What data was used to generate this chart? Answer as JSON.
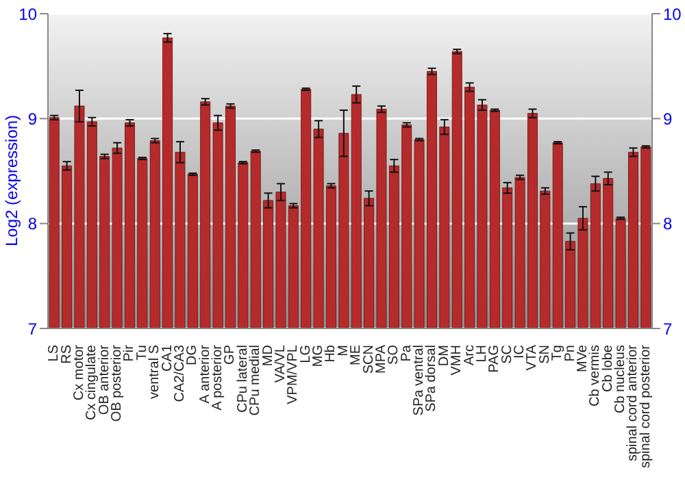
{
  "chart_data": {
    "type": "bar",
    "ylabel": "Log2 (expression)",
    "categories": [
      "LS",
      "RS",
      "Cx motor",
      "Cx cingulate",
      "OB anterior",
      "OB posterior",
      "Pir",
      "Tu",
      "ventral S",
      "CA1",
      "CA2/CA3",
      "DG",
      "A anterior",
      "A posterior",
      "GP",
      "CPu lateral",
      "CPu medial",
      "MD",
      "VA/VL",
      "VPM/VPL",
      "LG",
      "MG",
      "Hb",
      "M",
      "ME",
      "SCN",
      "MPA",
      "SO",
      "Pa",
      "SPa ventral",
      "SPa dorsal",
      "DM",
      "VMH",
      "Arc",
      "LH",
      "PAG",
      "SC",
      "IC",
      "VTA",
      "SN",
      "Tg",
      "Pn",
      "MVe",
      "Cb vermis",
      "Cb lobe",
      "Cb nucleus",
      "spinal cord anterior",
      "spinal cord posterior"
    ],
    "values": [
      9.01,
      8.55,
      9.12,
      8.97,
      8.64,
      8.72,
      8.96,
      8.62,
      8.79,
      9.77,
      8.68,
      8.47,
      9.16,
      8.96,
      9.12,
      8.58,
      8.69,
      8.22,
      8.3,
      8.17,
      9.28,
      8.9,
      8.36,
      8.86,
      9.23,
      8.24,
      9.09,
      8.55,
      8.94,
      8.8,
      9.45,
      8.92,
      9.64,
      9.3,
      9.13,
      9.08,
      8.34,
      8.44,
      9.05,
      8.31,
      8.77,
      7.83,
      8.05,
      8.38,
      8.43,
      8.05,
      8.68,
      8.73
    ],
    "errors": [
      0.02,
      0.04,
      0.15,
      0.04,
      0.02,
      0.05,
      0.03,
      0.01,
      0.02,
      0.04,
      0.1,
      0.01,
      0.03,
      0.07,
      0.02,
      0.01,
      0.01,
      0.07,
      0.08,
      0.02,
      0.01,
      0.08,
      0.02,
      0.22,
      0.08,
      0.07,
      0.03,
      0.06,
      0.02,
      0.01,
      0.03,
      0.07,
      0.02,
      0.04,
      0.05,
      0.01,
      0.05,
      0.02,
      0.04,
      0.03,
      0.01,
      0.08,
      0.11,
      0.07,
      0.06,
      0.01,
      0.04,
      0.01
    ],
    "color": "#b52b2b",
    "ylim": [
      7,
      10
    ],
    "yticks": [
      7,
      8,
      9,
      10
    ],
    "y2lim": [
      7,
      10
    ],
    "y2ticks": [
      7,
      8,
      9,
      10
    ],
    "grid": "y"
  }
}
